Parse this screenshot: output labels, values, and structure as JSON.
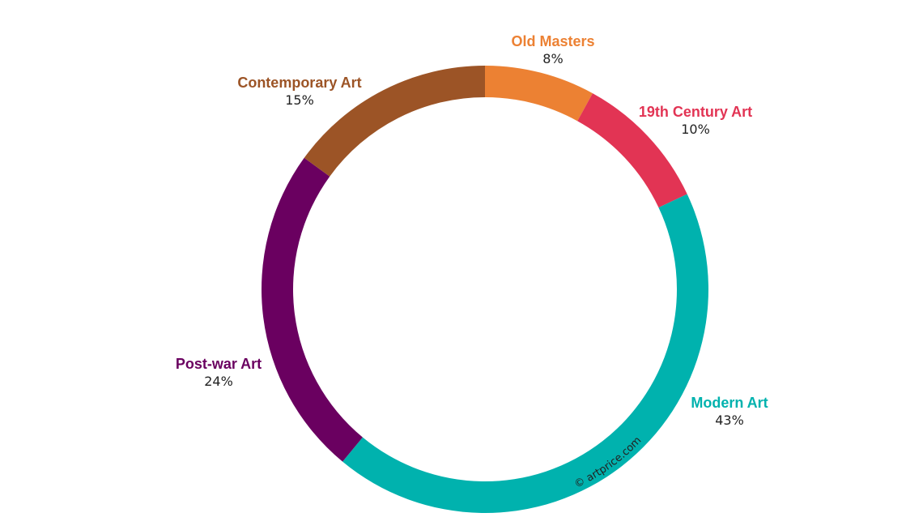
{
  "chart_data": {
    "type": "pie",
    "variant": "donut",
    "start_angle_deg": 0,
    "direction": "clockwise",
    "slices": [
      {
        "label": "Old Masters",
        "value": 8,
        "value_label": "8%",
        "color": "#ec8133"
      },
      {
        "label": "19th Century Art",
        "value": 10,
        "value_label": "10%",
        "color": "#e23454"
      },
      {
        "label": "Modern Art",
        "value": 43,
        "value_label": "43%",
        "color": "#00b2ae"
      },
      {
        "label": "Post-war Art",
        "value": 24,
        "value_label": "24%",
        "color": "#6a0060"
      },
      {
        "label": "Contemporary Art",
        "value": 15,
        "value_label": "15%",
        "color": "#9c5426"
      }
    ],
    "watermark": "© artprice.com",
    "legend": "none (labels beside slices)"
  }
}
